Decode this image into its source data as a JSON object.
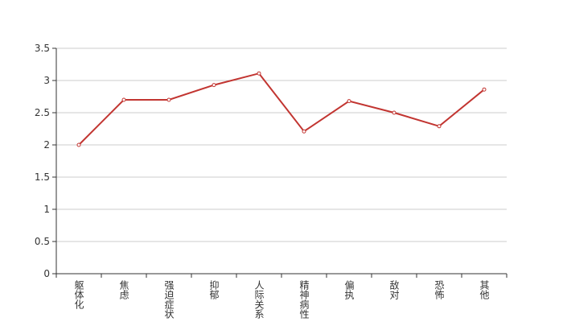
{
  "chart_data": {
    "type": "line",
    "categories": [
      "躯体化",
      "焦虑",
      "强迫症状",
      "抑郁",
      "人际关系",
      "精神病性",
      "偏执",
      "敌对",
      "恐怖",
      "其他"
    ],
    "values": [
      2.0,
      2.7,
      2.7,
      2.93,
      3.11,
      2.21,
      2.68,
      2.5,
      2.29,
      2.86
    ],
    "color": "#c23531",
    "ylim": [
      0,
      3.5
    ],
    "yticks": [
      0,
      0.5,
      1,
      1.5,
      2,
      2.5,
      3,
      3.5
    ],
    "grid": true
  }
}
